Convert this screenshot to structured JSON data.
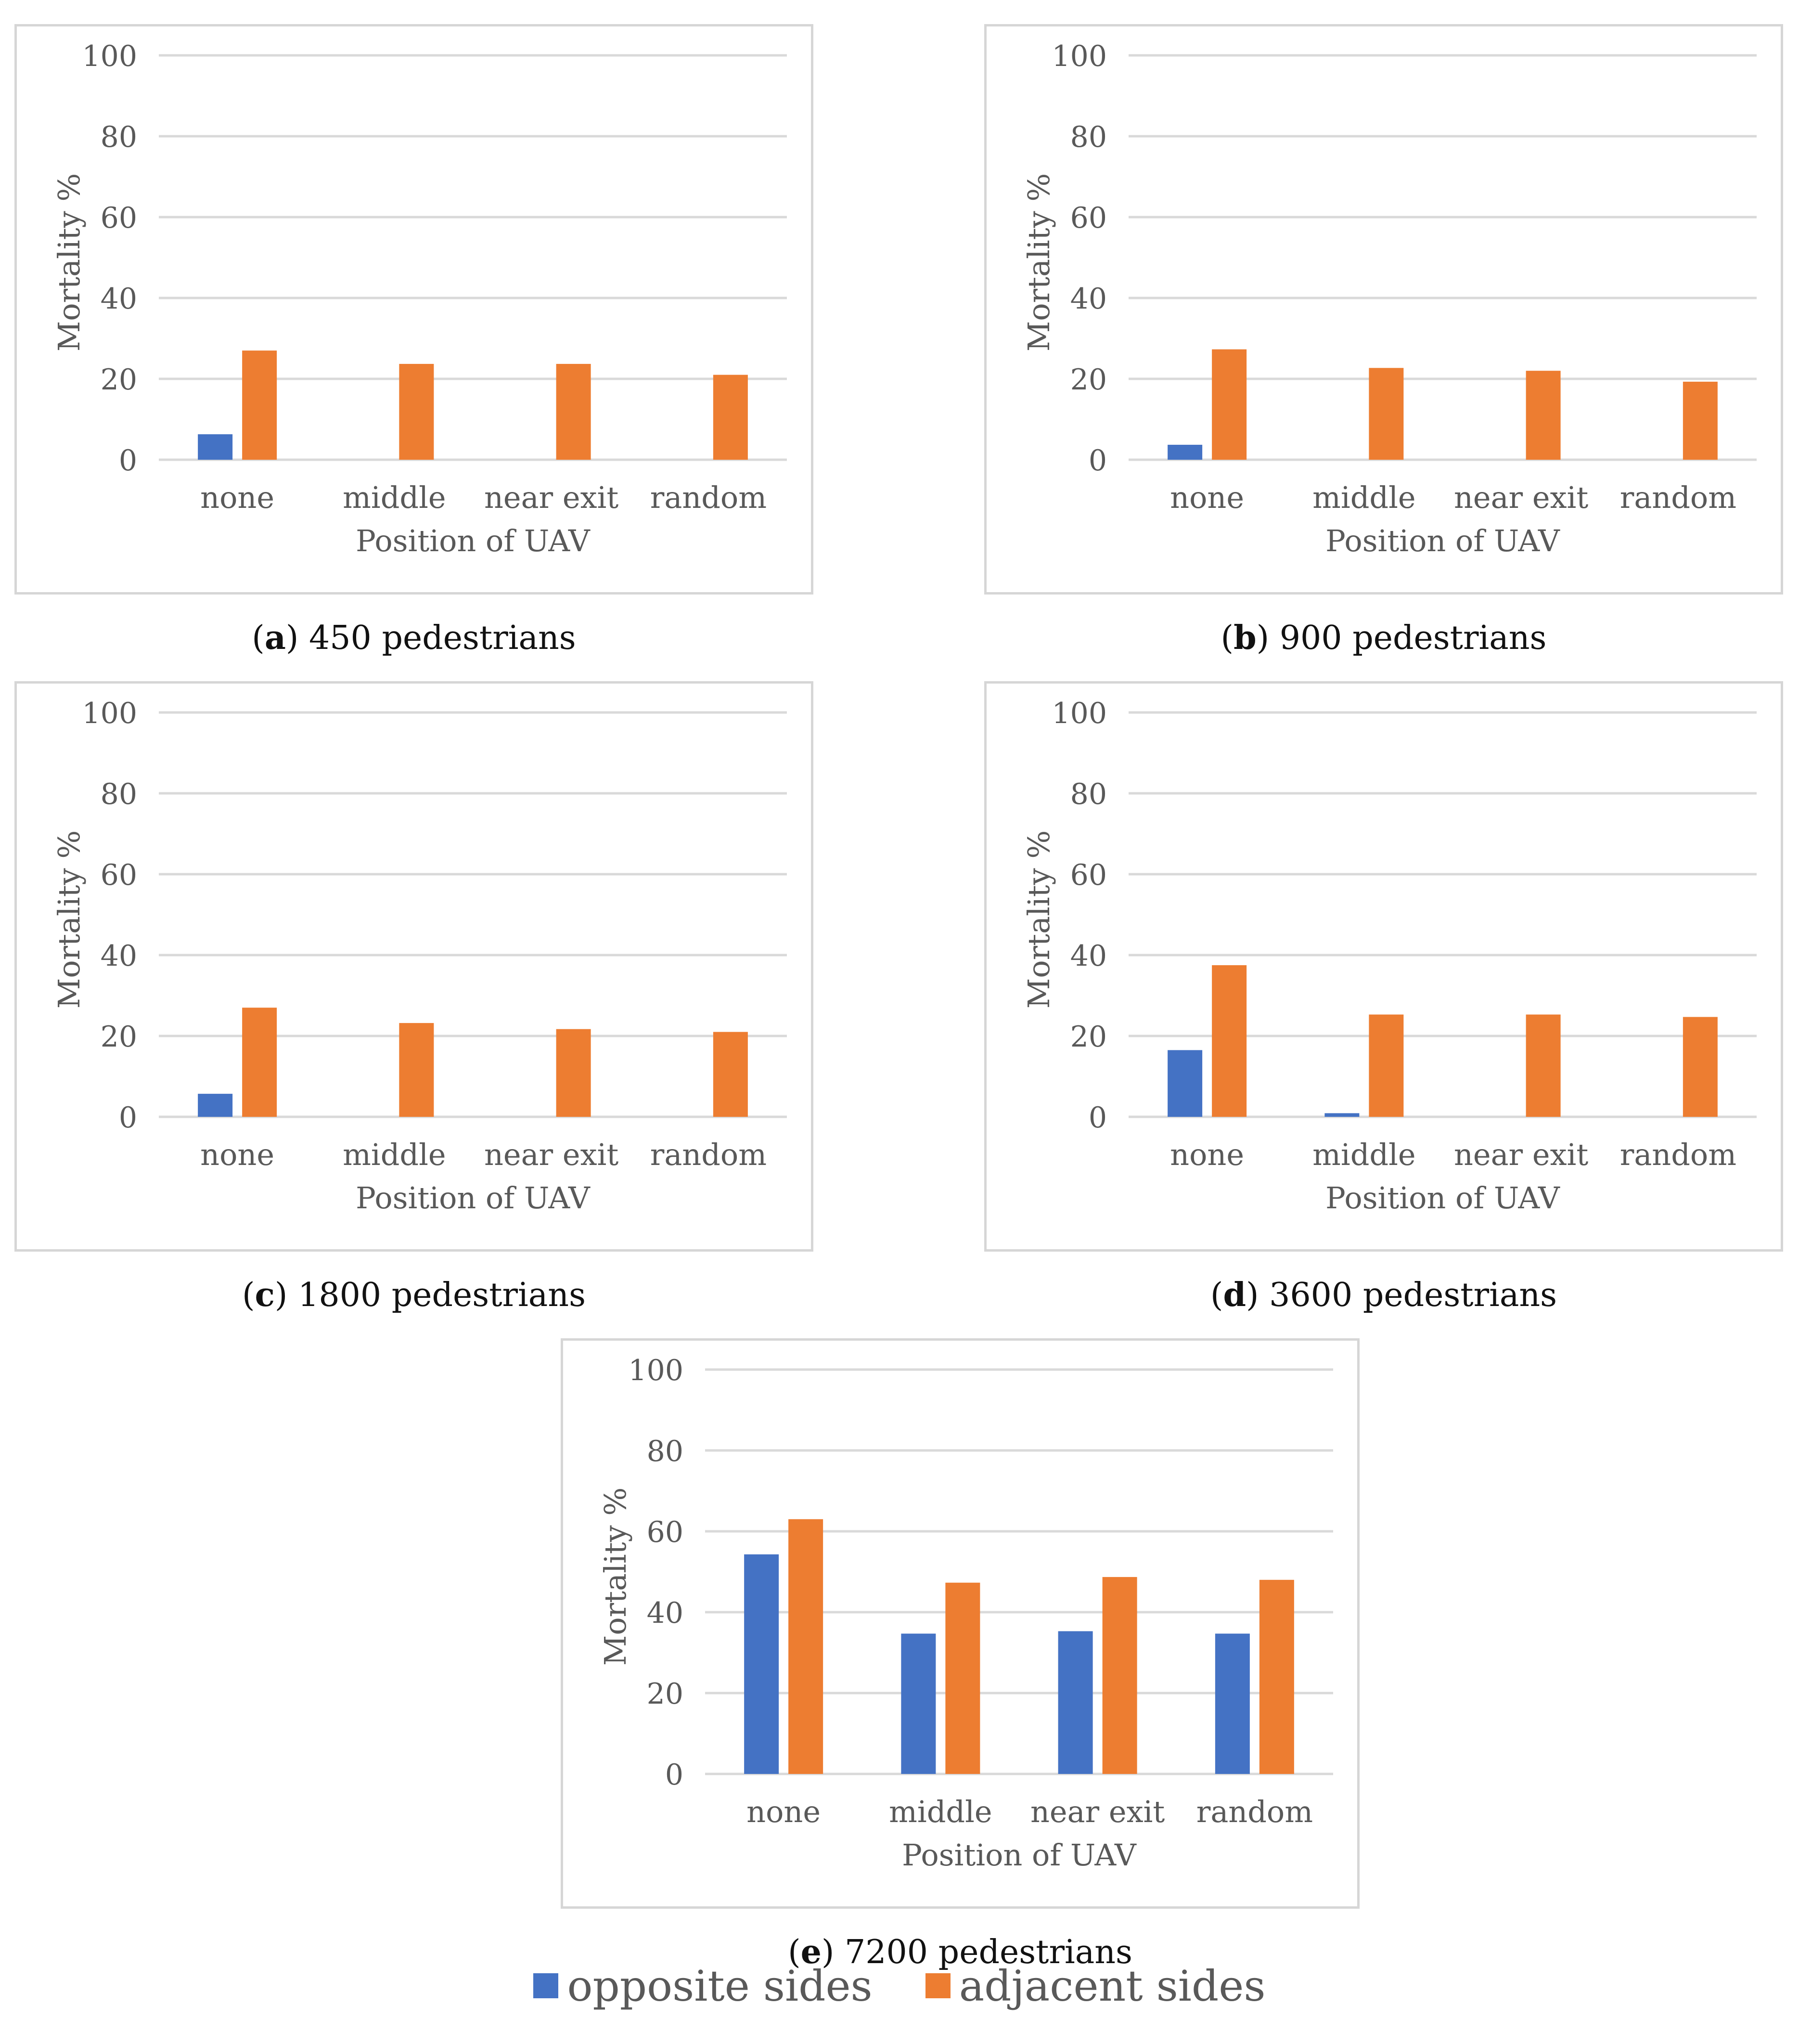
{
  "colors": {
    "opposite": "#4472C4",
    "adjacent": "#ED7D31",
    "grid": "#d9d9d9",
    "text": "#595959"
  },
  "legend": {
    "opposite_label": "opposite sides",
    "adjacent_label": "adjacent sides"
  },
  "chart_data": [
    {
      "type": "bar",
      "caption_letter": "a",
      "caption_text": "450 pedestrians",
      "xlabel": "Position of UAV",
      "ylabel": "Mortality %",
      "ylim": [
        0,
        100
      ],
      "yticks": [
        0,
        20,
        40,
        60,
        80,
        100
      ],
      "categories": [
        "none",
        "middle",
        "near exit",
        "random"
      ],
      "series": [
        {
          "name": "opposite sides",
          "values": [
            6.3,
            0,
            0,
            0
          ]
        },
        {
          "name": "adjacent sides",
          "values": [
            27,
            23.7,
            23.7,
            21
          ]
        }
      ]
    },
    {
      "type": "bar",
      "caption_letter": "b",
      "caption_text": "900 pedestrians",
      "xlabel": "Position of UAV",
      "ylabel": "Mortality %",
      "ylim": [
        0,
        100
      ],
      "yticks": [
        0,
        20,
        40,
        60,
        80,
        100
      ],
      "categories": [
        "none",
        "middle",
        "near exit",
        "random"
      ],
      "series": [
        {
          "name": "opposite sides",
          "values": [
            3.7,
            0,
            0,
            0
          ]
        },
        {
          "name": "adjacent sides",
          "values": [
            27.3,
            22.7,
            22,
            19.3
          ]
        }
      ]
    },
    {
      "type": "bar",
      "caption_letter": "c",
      "caption_text": "1800 pedestrians",
      "xlabel": "Position of UAV",
      "ylabel": "Mortality %",
      "ylim": [
        0,
        100
      ],
      "yticks": [
        0,
        20,
        40,
        60,
        80,
        100
      ],
      "categories": [
        "none",
        "middle",
        "near exit",
        "random"
      ],
      "series": [
        {
          "name": "opposite sides",
          "values": [
            5.7,
            0,
            0,
            0
          ]
        },
        {
          "name": "adjacent sides",
          "values": [
            27,
            23.2,
            21.7,
            21
          ]
        }
      ]
    },
    {
      "type": "bar",
      "caption_letter": "d",
      "caption_text": "3600 pedestrians",
      "xlabel": "Position of UAV",
      "ylabel": "Mortality %",
      "ylim": [
        0,
        100
      ],
      "yticks": [
        0,
        20,
        40,
        60,
        80,
        100
      ],
      "categories": [
        "none",
        "middle",
        "near exit",
        "random"
      ],
      "series": [
        {
          "name": "opposite sides",
          "values": [
            16.5,
            0.9,
            0,
            0
          ]
        },
        {
          "name": "adjacent sides",
          "values": [
            37.5,
            25.3,
            25.3,
            24.7
          ]
        }
      ]
    },
    {
      "type": "bar",
      "caption_letter": "e",
      "caption_text": "7200 pedestrians",
      "xlabel": "Position of UAV",
      "ylabel": "Mortality %",
      "ylim": [
        0,
        100
      ],
      "yticks": [
        0,
        20,
        40,
        60,
        80,
        100
      ],
      "categories": [
        "none",
        "middle",
        "near exit",
        "random"
      ],
      "series": [
        {
          "name": "opposite sides",
          "values": [
            54.3,
            34.7,
            35.3,
            34.7
          ]
        },
        {
          "name": "adjacent sides",
          "values": [
            63,
            47.3,
            48.7,
            48
          ]
        }
      ]
    }
  ]
}
